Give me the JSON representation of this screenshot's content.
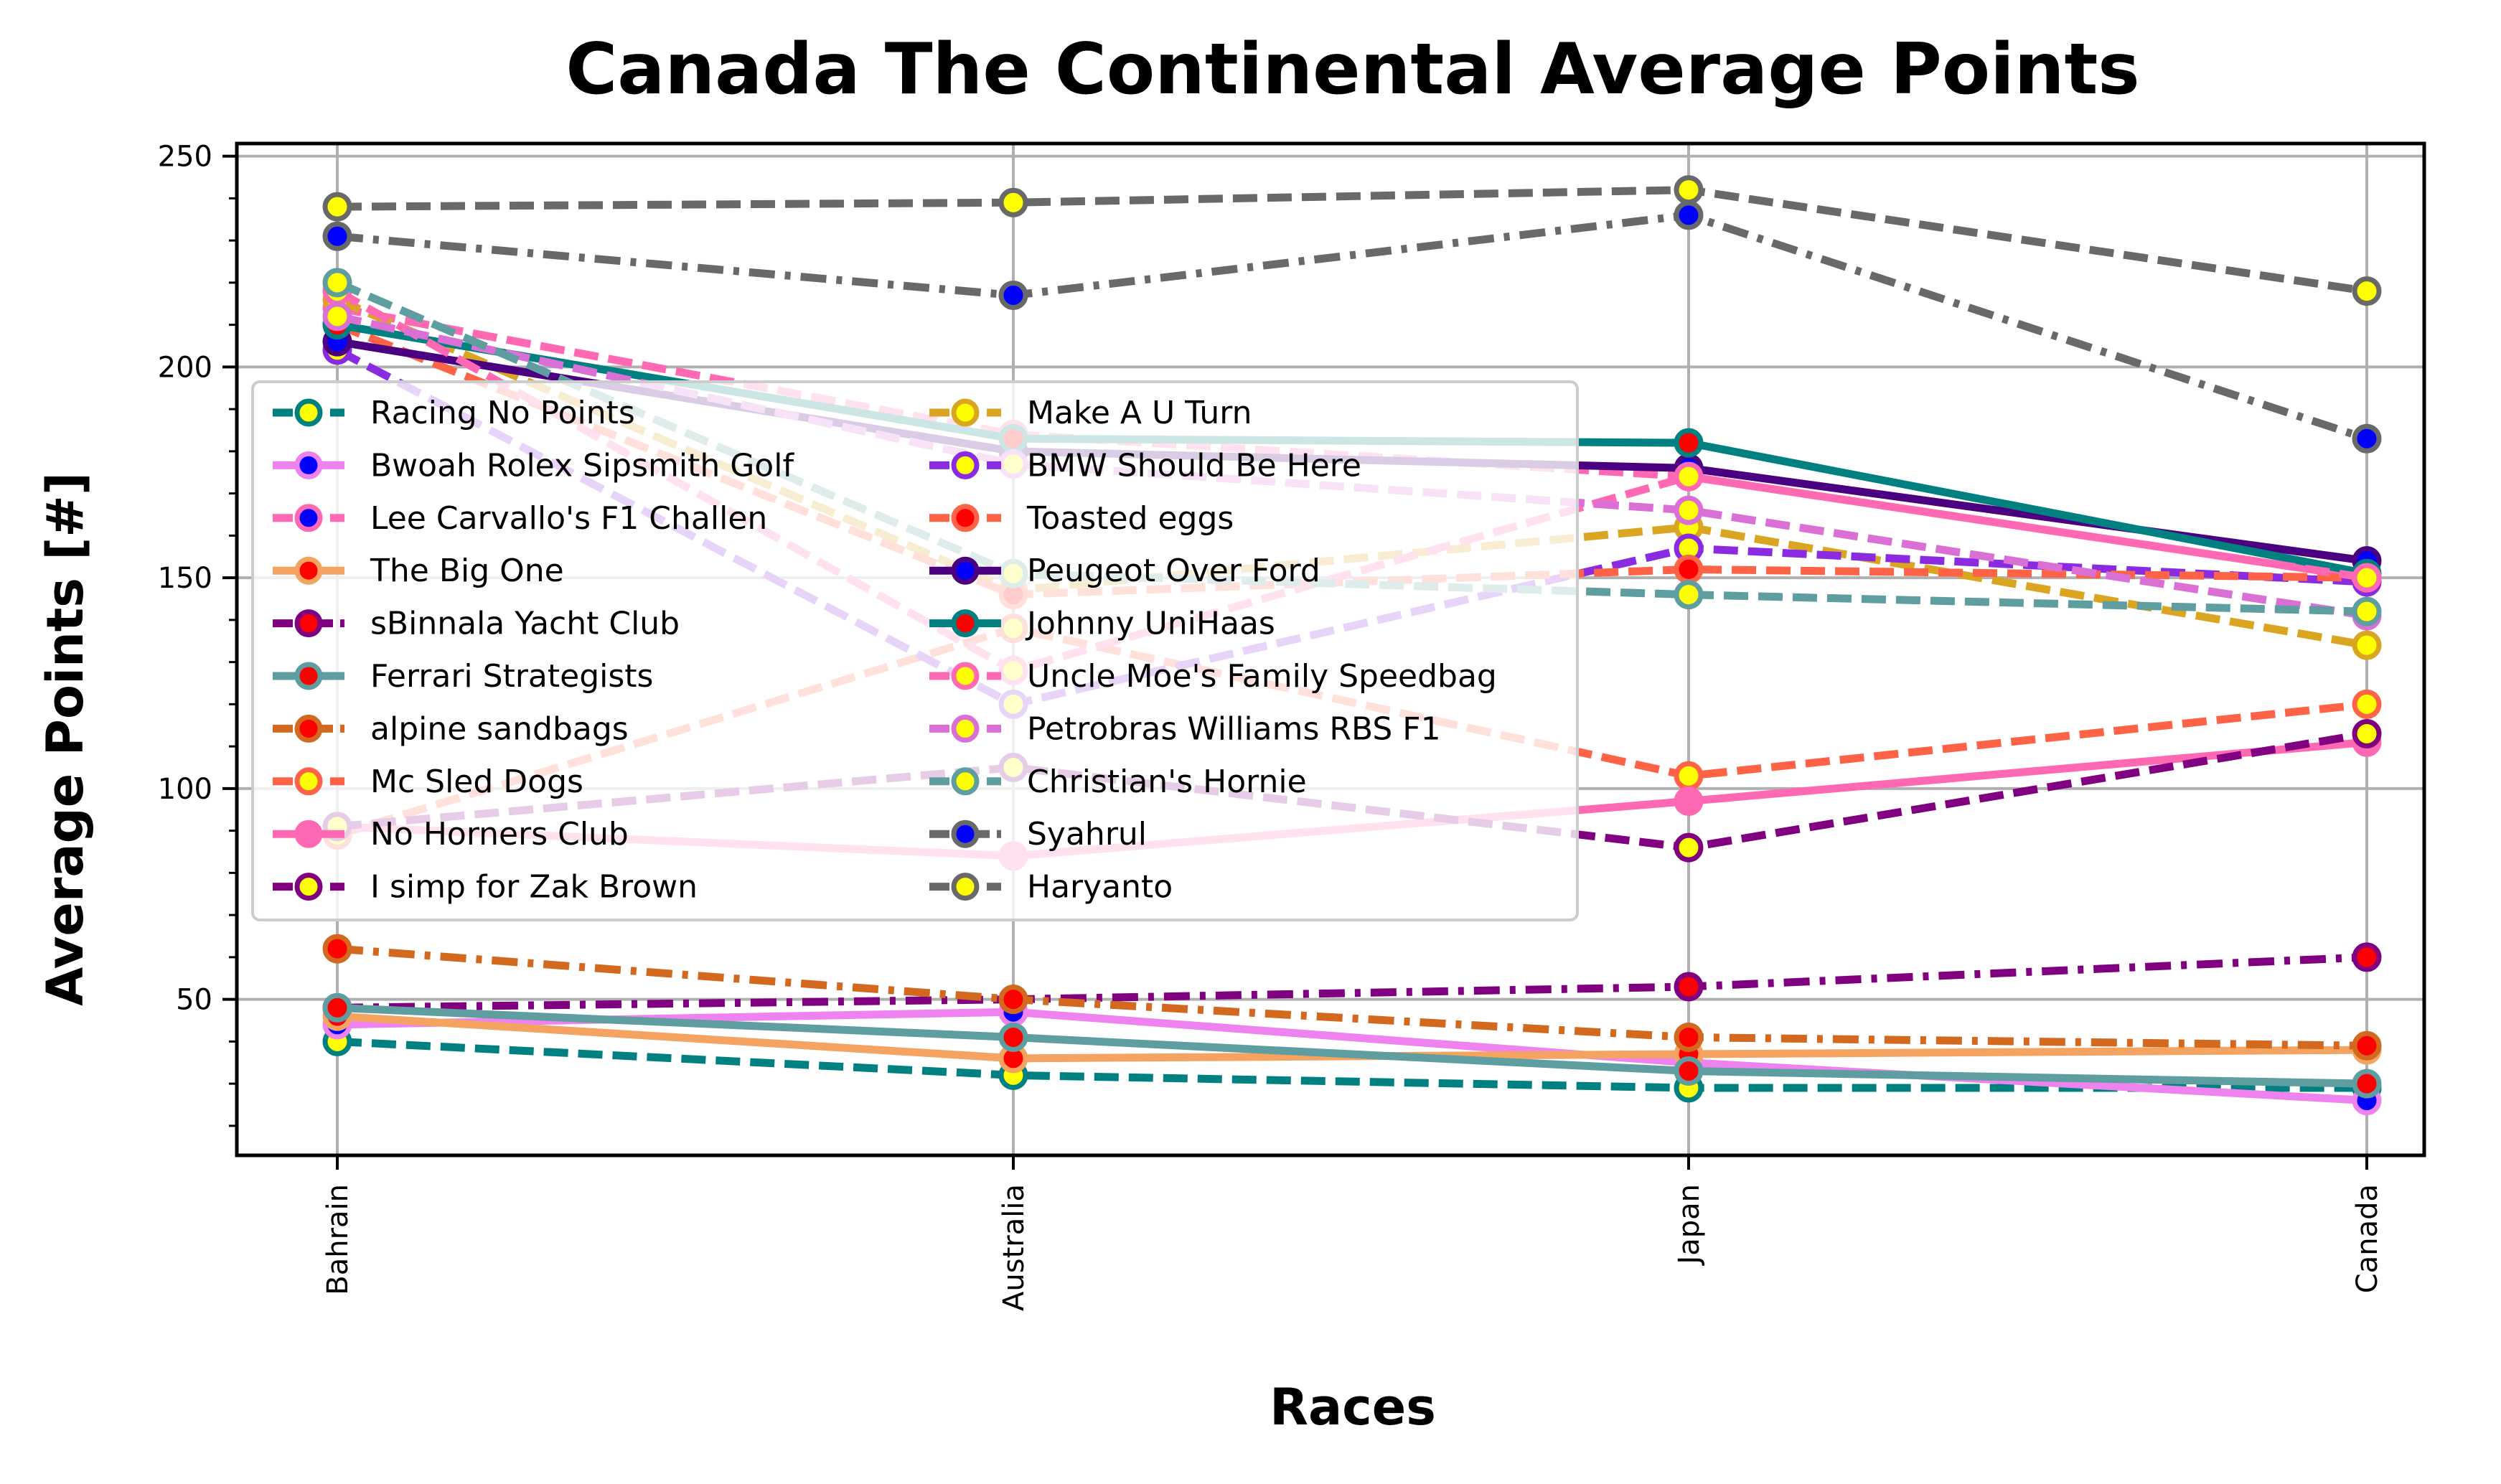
{
  "chart_data": {
    "type": "line",
    "title": "Canada The Continental Average Points",
    "xlabel": "Races",
    "ylabel": "Average Points [#]",
    "categories": [
      "Bahrain",
      "Australia",
      "Japan",
      "Canada"
    ],
    "ylim": [
      13,
      253
    ],
    "yticks": [
      50,
      100,
      150,
      200,
      250
    ],
    "grid": true,
    "legend_position": "center-left",
    "series": [
      {
        "name": "Racing No Points",
        "values": [
          40,
          32,
          29,
          29
        ],
        "color": "#008080",
        "marker_face": "#ffff00",
        "dash": "dashed"
      },
      {
        "name": "Bwoah Rolex Sipsmith Golf",
        "values": [
          44,
          47,
          35,
          26
        ],
        "color": "#ee82ee",
        "marker_face": "#0000ff",
        "dash": "solid"
      },
      {
        "name": "Lee Carvallo's F1 Challen",
        "values": [
          214,
          184,
          174,
          150
        ],
        "color": "#ff69b4",
        "marker_face": "#0000ff",
        "dash": "dashed"
      },
      {
        "name": "The Big One",
        "values": [
          46,
          36,
          37,
          38
        ],
        "color": "#f4a460",
        "marker_face": "#ff0000",
        "dash": "solid"
      },
      {
        "name": "sBinnala Yacht Club",
        "values": [
          48,
          50,
          53,
          60
        ],
        "color": "#800080",
        "marker_face": "#ff0000",
        "dash": "dashdot"
      },
      {
        "name": "Ferrari Strategists",
        "values": [
          48,
          41,
          33,
          30
        ],
        "color": "#5f9ea0",
        "marker_face": "#ff0000",
        "dash": "solid"
      },
      {
        "name": "alpine sandbags",
        "values": [
          62,
          50,
          41,
          39
        ],
        "color": "#d2691e",
        "marker_face": "#ff0000",
        "dash": "dashdot"
      },
      {
        "name": "Mc Sled Dogs",
        "values": [
          89,
          138,
          103,
          120
        ],
        "color": "#ff6347",
        "marker_face": "#ffff00",
        "dash": "dashed"
      },
      {
        "name": "No Horners Club",
        "values": [
          91,
          84,
          97,
          111
        ],
        "color": "#ff69b4",
        "marker_face": "#ff69b4",
        "dash": "solid"
      },
      {
        "name": "I simp for Zak Brown",
        "values": [
          91,
          105,
          86,
          113
        ],
        "color": "#800080",
        "marker_face": "#ffff00",
        "dash": "dashed"
      },
      {
        "name": "Make A U Turn",
        "values": [
          216,
          147,
          162,
          134
        ],
        "color": "#daa520",
        "marker_face": "#ffff00",
        "dash": "dashed"
      },
      {
        "name": "BMW Should Be Here",
        "values": [
          204,
          120,
          157,
          149
        ],
        "color": "#8a2be2",
        "marker_face": "#ffff00",
        "dash": "dashed"
      },
      {
        "name": "Toasted eggs",
        "values": [
          210,
          146,
          152,
          150
        ],
        "color": "#ff6347",
        "marker_face": "#ff0000",
        "dash": "dashed"
      },
      {
        "name": "Peugeot Over Ford",
        "values": [
          206,
          180,
          176,
          154
        ],
        "color": "#4b0082",
        "marker_face": "#0000ff",
        "dash": "solid"
      },
      {
        "name": "Johnny UniHaas",
        "values": [
          210,
          183,
          182,
          151
        ],
        "color": "#008080",
        "marker_face": "#ff0000",
        "dash": "solid"
      },
      {
        "name": "Uncle Moe's Family Speedbag",
        "values": [
          218,
          128,
          174,
          150
        ],
        "color": "#ff69b4",
        "marker_face": "#ffff00",
        "dash": "dashed"
      },
      {
        "name": "Petrobras Williams RBS F1",
        "values": [
          212,
          177,
          166,
          141
        ],
        "color": "#da70d6",
        "marker_face": "#ffff00",
        "dash": "dashed"
      },
      {
        "name": "Christian's Hornie",
        "values": [
          220,
          151,
          146,
          142
        ],
        "color": "#5f9ea0",
        "marker_face": "#ffff00",
        "dash": "dashed"
      },
      {
        "name": "Syahrul",
        "values": [
          231,
          217,
          236,
          183
        ],
        "color": "#696969",
        "marker_face": "#0000ff",
        "dash": "dashdot"
      },
      {
        "name": "Haryanto",
        "values": [
          238,
          239,
          242,
          218
        ],
        "color": "#696969",
        "marker_face": "#ffff00",
        "dash": "dashed"
      }
    ]
  }
}
